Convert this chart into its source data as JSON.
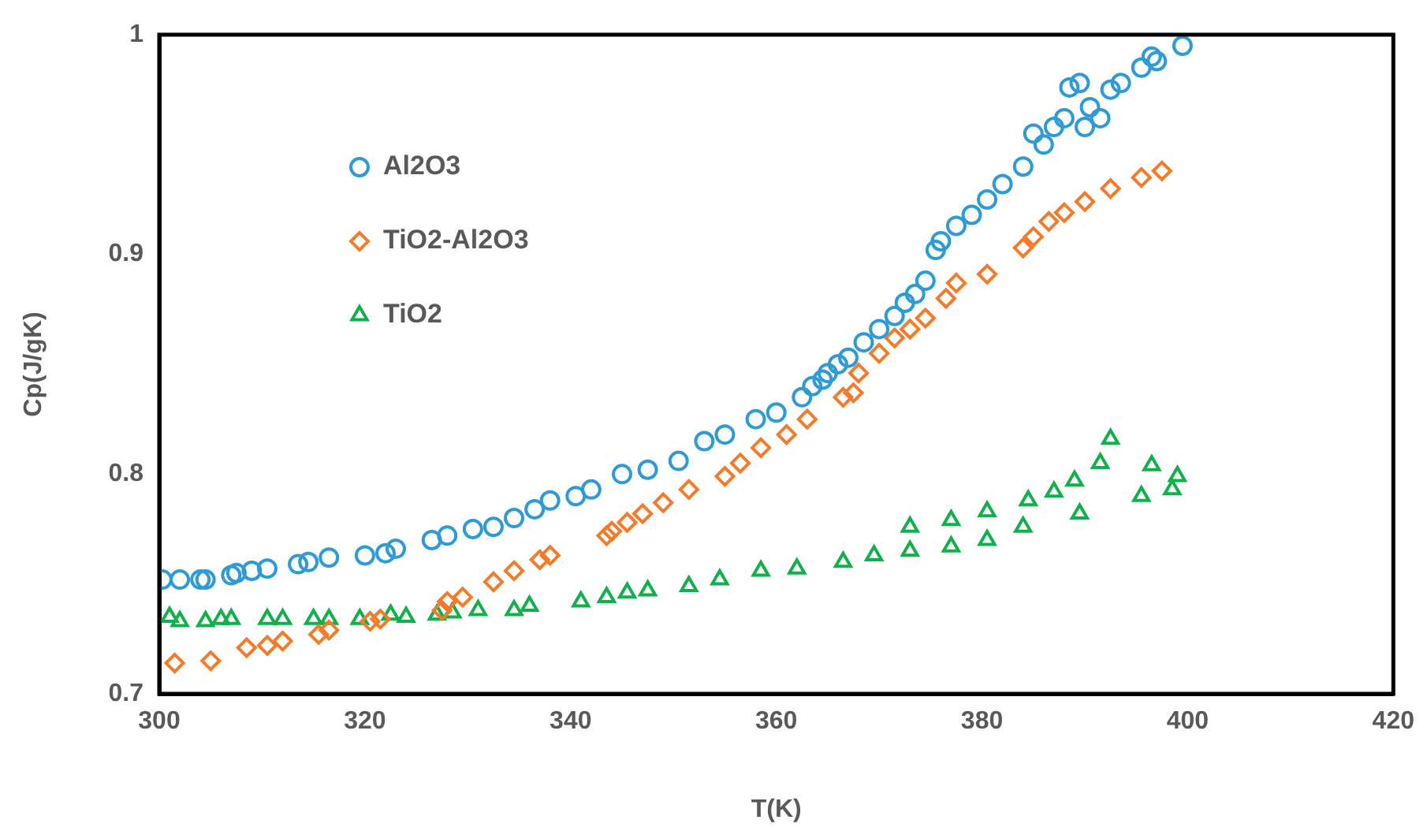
{
  "chart_data": {
    "type": "scatter",
    "xlabel": "T(K)",
    "ylabel": "Cp(J/gK)",
    "xlim": [
      300,
      420
    ],
    "xticks": [
      300,
      320,
      340,
      360,
      380,
      400,
      420
    ],
    "ylim": [
      0.7,
      1
    ],
    "yticks": [
      0.7,
      0.8,
      0.9,
      1
    ],
    "grid": false,
    "legend": "top left",
    "series": [
      {
        "name": "Al2O3",
        "color": "#2e9bd6",
        "marker": "circle",
        "x": [
          300.3,
          302,
          304,
          304.5,
          307,
          307.5,
          309,
          310.5,
          313.5,
          314.5,
          316.5,
          320,
          322,
          323,
          326.5,
          328,
          330.5,
          332.5,
          334.5,
          336.5,
          338,
          340.5,
          342,
          345,
          347.5,
          350.5,
          353,
          355,
          358,
          360,
          362.5,
          363.5,
          364.5,
          365,
          366,
          367,
          368.5,
          370,
          371.5,
          372.5,
          373.5,
          374.5,
          375.5,
          376,
          377.5,
          379,
          380.5,
          382,
          384,
          385,
          386,
          387,
          388,
          388.5,
          389.5,
          390,
          390.5,
          391.5,
          392.5,
          393.5,
          395.5,
          396.5,
          397,
          399.5
        ],
        "values": [
          0.752,
          0.752,
          0.752,
          0.752,
          0.754,
          0.755,
          0.756,
          0.757,
          0.759,
          0.76,
          0.762,
          0.763,
          0.764,
          0.766,
          0.77,
          0.772,
          0.775,
          0.776,
          0.78,
          0.784,
          0.788,
          0.79,
          0.793,
          0.8,
          0.802,
          0.806,
          0.815,
          0.818,
          0.825,
          0.828,
          0.835,
          0.84,
          0.843,
          0.846,
          0.85,
          0.853,
          0.86,
          0.866,
          0.872,
          0.878,
          0.882,
          0.888,
          0.902,
          0.906,
          0.913,
          0.918,
          0.925,
          0.932,
          0.94,
          0.955,
          0.95,
          0.958,
          0.962,
          0.976,
          0.978,
          0.958,
          0.967,
          0.962,
          0.975,
          0.978,
          0.985,
          0.99,
          0.988,
          0.995
        ]
      },
      {
        "name": "TiO2-Al2O3",
        "color": "#f47b2a",
        "marker": "diamond",
        "x": [
          301.5,
          305,
          308.5,
          310.5,
          312,
          315.5,
          316.5,
          320.5,
          321.5,
          327.5,
          328,
          329.5,
          332.5,
          334.5,
          337,
          338,
          343.5,
          344,
          345.5,
          347,
          349,
          351.5,
          355,
          356.5,
          358.5,
          361,
          363,
          366.5,
          367.5,
          368,
          370,
          371.5,
          373,
          374.5,
          376.5,
          377.5,
          380.5,
          384,
          385,
          386.5,
          388,
          390,
          392.5,
          395.5,
          397.5
        ],
        "values": [
          0.714,
          0.715,
          0.721,
          0.722,
          0.724,
          0.727,
          0.729,
          0.733,
          0.734,
          0.738,
          0.742,
          0.744,
          0.751,
          0.756,
          0.761,
          0.763,
          0.772,
          0.774,
          0.778,
          0.782,
          0.787,
          0.793,
          0.799,
          0.805,
          0.812,
          0.818,
          0.825,
          0.835,
          0.837,
          0.846,
          0.855,
          0.862,
          0.866,
          0.871,
          0.88,
          0.887,
          0.891,
          0.903,
          0.908,
          0.915,
          0.919,
          0.924,
          0.93,
          0.935,
          0.938
        ]
      },
      {
        "name": "TiO2",
        "color": "#10b04a",
        "marker": "triangle",
        "x": [
          301,
          302,
          304.5,
          306,
          307,
          310.5,
          312,
          315,
          316.5,
          319.5,
          322.5,
          324,
          327,
          328.5,
          331,
          334.5,
          336,
          341,
          343.5,
          345.5,
          347.5,
          351.5,
          354.5,
          358.5,
          362,
          366.5,
          369.5,
          373,
          373,
          377,
          377,
          380.5,
          380.5,
          384,
          384.5,
          387,
          389,
          389.5,
          391.5,
          392.5,
          395.5,
          396.5,
          398.5,
          399
        ],
        "values": [
          0.735,
          0.733,
          0.733,
          0.734,
          0.734,
          0.734,
          0.734,
          0.734,
          0.734,
          0.734,
          0.736,
          0.735,
          0.736,
          0.737,
          0.738,
          0.738,
          0.74,
          0.742,
          0.744,
          0.746,
          0.747,
          0.749,
          0.752,
          0.756,
          0.757,
          0.76,
          0.763,
          0.765,
          0.776,
          0.767,
          0.779,
          0.77,
          0.783,
          0.776,
          0.788,
          0.792,
          0.797,
          0.782,
          0.805,
          0.816,
          0.79,
          0.804,
          0.793,
          0.799
        ]
      }
    ]
  }
}
